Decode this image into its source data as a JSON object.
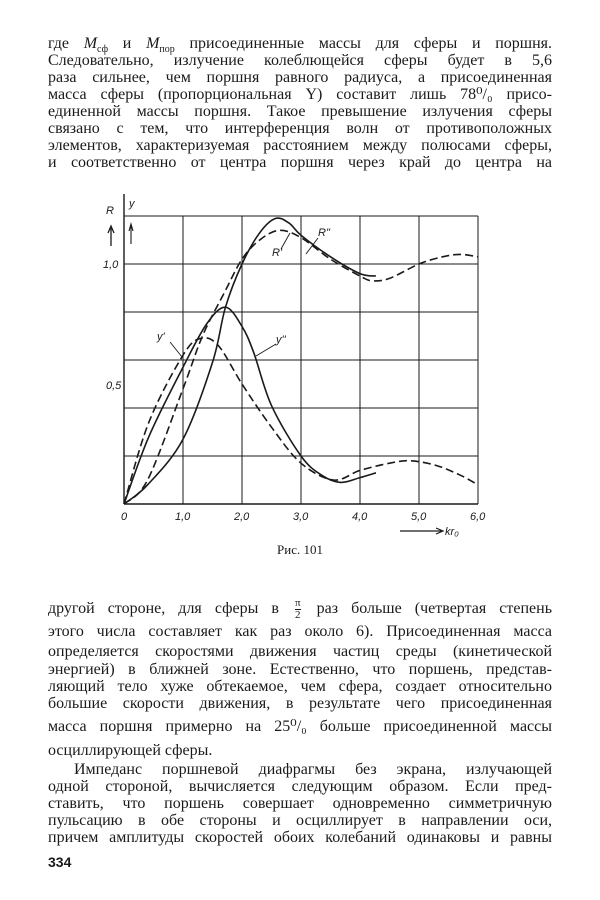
{
  "top_paragraph": {
    "line0": {
      "a": "где ",
      "m1": "M",
      "s1": "сф",
      "b": " и ",
      "m2": "M",
      "s2": "пор",
      "c": " присоединенные массы для сферы и поршня."
    },
    "lines": [
      "Следовательно, излучение колеблющейся сферы будет в 5,6",
      "раза сильнее, чем поршня равного радиуса, а присоединенная",
      "масса сферы (пропорциональная Y) составит лишь 78⁰/₀ присо-",
      "единенной массы поршня. Такое превышение излучения сферы",
      "связано с тем, что интерференция волн от противоположных",
      "элементов, характеризуемая расстоянием между полюсами сферы,",
      "и соответственно от центра поршня через край до центра на"
    ]
  },
  "figure": {
    "caption": "Рис. 101",
    "chart_data": {
      "type": "line",
      "xlabel": "kr₀",
      "ylabels": [
        "R",
        "y"
      ],
      "xlim": [
        0,
        6
      ],
      "ylim": [
        0,
        1.2
      ],
      "x_ticks": [
        "0",
        "1,0",
        "2,0",
        "3,0",
        "4,0",
        "5,0",
        "6,0"
      ],
      "y_ticks": [
        "0,5",
        "1,0"
      ],
      "grid": true,
      "series": [
        {
          "name": "R'",
          "style": "dashed",
          "points": [
            [
              0,
              0
            ],
            [
              0.4,
              0.1
            ],
            [
              1.0,
              0.48
            ],
            [
              1.33,
              0.7
            ],
            [
              1.7,
              0.88
            ],
            [
              2.0,
              1.02
            ],
            [
              2.3,
              1.1
            ],
            [
              2.63,
              1.14
            ],
            [
              3.0,
              1.11
            ],
            [
              3.5,
              1.02
            ],
            [
              4.0,
              0.95
            ],
            [
              4.2,
              0.93
            ],
            [
              4.5,
              0.94
            ],
            [
              5.0,
              1.0
            ],
            [
              5.4,
              1.03
            ],
            [
              5.7,
              1.04
            ],
            [
              6.0,
              1.03
            ]
          ]
        },
        {
          "name": "R''",
          "style": "solid",
          "points": [
            [
              0,
              0
            ],
            [
              0.4,
              0.08
            ],
            [
              1.0,
              0.27
            ],
            [
              1.5,
              0.59
            ],
            [
              1.72,
              0.82
            ],
            [
              2.0,
              1.0
            ],
            [
              2.3,
              1.13
            ],
            [
              2.57,
              1.19
            ],
            [
              2.8,
              1.17
            ],
            [
              3.0,
              1.12
            ],
            [
              3.5,
              1.03
            ],
            [
              4.0,
              0.96
            ],
            [
              4.27,
              0.95
            ]
          ]
        },
        {
          "name": "y'",
          "style": "dashed",
          "points": [
            [
              0,
              0
            ],
            [
              0.42,
              0.34
            ],
            [
              1.0,
              0.62
            ],
            [
              1.3,
              0.69
            ],
            [
              1.6,
              0.66
            ],
            [
              2.0,
              0.5
            ],
            [
              2.5,
              0.32
            ],
            [
              3.0,
              0.17
            ],
            [
              3.55,
              0.1
            ],
            [
              4.0,
              0.14
            ],
            [
              4.5,
              0.17
            ],
            [
              4.86,
              0.18
            ],
            [
              5.3,
              0.16
            ],
            [
              5.7,
              0.12
            ],
            [
              6.0,
              0.08
            ]
          ]
        },
        {
          "name": "y''",
          "style": "solid",
          "points": [
            [
              0,
              0
            ],
            [
              0.42,
              0.28
            ],
            [
              1.0,
              0.57
            ],
            [
              1.4,
              0.75
            ],
            [
              1.72,
              0.82
            ],
            [
              2.0,
              0.74
            ],
            [
              2.2,
              0.63
            ],
            [
              2.5,
              0.41
            ],
            [
              3.0,
              0.2
            ],
            [
              3.35,
              0.12
            ],
            [
              3.67,
              0.09
            ],
            [
              4.0,
              0.11
            ],
            [
              4.27,
              0.13
            ]
          ]
        }
      ]
    },
    "colors": {
      "ink": "#1a1a1a",
      "paper": "#ffffff"
    }
  },
  "bottom_paragraph": {
    "line0": {
      "a": "другой стороне, для сферы в ",
      "num": "π",
      "den": "2",
      "b": " раз больше (четвертая степень"
    },
    "lines": [
      "этого числа составляет как раз около 6). Присоединенная масса",
      "определяется скоростями движения частиц среды (кинетической",
      "энергией) в ближней зоне. Естественно, что поршень, представ-",
      "ляющий тело хуже обтекаемое, чем сфера, создает относительно",
      "большие скорости движения, в результате чего присоединенная",
      "масса поршня примерно на 25⁰/₀ больше присоединенной массы",
      "осциллирующей сферы."
    ]
  },
  "last_paragraph": {
    "lines": [
      "Импеданс поршневой диафрагмы без экрана, излучающей",
      "одной стороной, вычисляется следующим образом. Если пред-",
      "ставить, что поршень совершает одновременно симметричную",
      "пульсацию в обе стороны и осциллирует в направлении оси,",
      "причем амплитуды скоростей обоих колебаний одинаковы и равны"
    ]
  },
  "page_number": "334"
}
